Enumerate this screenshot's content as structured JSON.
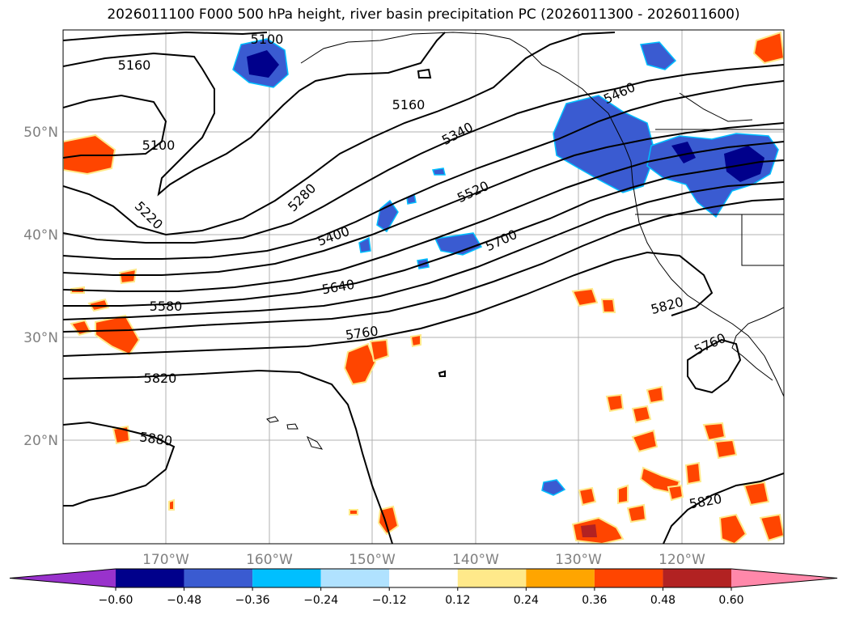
{
  "title": "2026011100 F000 500 hPa height, river basin precipitation PC (2026011300 - 2026011600)",
  "map": {
    "lat_labels": [
      "50°N",
      "40°N",
      "30°N",
      "20°N"
    ],
    "lon_labels": [
      "170°W",
      "160°W",
      "150°W",
      "140°W",
      "130°W",
      "120°W"
    ]
  },
  "contour_labels": [
    "5100",
    "5160",
    "5160",
    "5100",
    "5220",
    "5280",
    "5340",
    "5460",
    "5400",
    "5520",
    "5700",
    "5580",
    "5640",
    "5760",
    "5820",
    "5820",
    "5760",
    "5880",
    "5820"
  ],
  "colorbar": {
    "ticks": [
      "−0.60",
      "−0.48",
      "−0.36",
      "−0.24",
      "−0.12",
      "0.12",
      "0.24",
      "0.36",
      "0.48",
      "0.60"
    ],
    "colors": [
      "#9932cc",
      "#00008b",
      "#3a5bd1",
      "#00bfff",
      "#b0e2ff",
      "#ffffff",
      "#ffe98a",
      "#ffa500",
      "#ff4500",
      "#b22222",
      "#ff88aa"
    ]
  }
}
